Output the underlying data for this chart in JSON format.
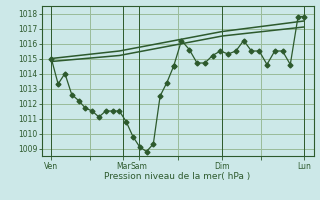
{
  "bg_color": "#cce8e8",
  "grid_color": "#99bb99",
  "line_color": "#2d5a2d",
  "text_color": "#2d5a2d",
  "xlabel": "Pression niveau de la mer( hPa )",
  "ylim": [
    1008.5,
    1018.5
  ],
  "yticks": [
    1009,
    1010,
    1011,
    1012,
    1013,
    1014,
    1015,
    1016,
    1017,
    1018
  ],
  "xlim": [
    0,
    14.0
  ],
  "xtick_labels": [
    "Ven",
    "",
    "Mar",
    "Sam",
    "",
    "Dim",
    "",
    "Lun"
  ],
  "xtick_positions": [
    0.5,
    2.5,
    4.2,
    5.0,
    7.0,
    9.3,
    11.3,
    13.5
  ],
  "series_main_x": [
    0.5,
    0.85,
    1.2,
    1.55,
    1.9,
    2.25,
    2.6,
    2.95,
    3.3,
    3.65,
    4.0,
    4.35,
    4.7,
    5.05,
    5.4,
    5.75,
    6.1,
    6.45,
    6.8
  ],
  "series_main_y": [
    1015.0,
    1013.3,
    1014.0,
    1012.6,
    1012.2,
    1011.7,
    1011.5,
    1011.1,
    1011.5,
    1011.5,
    1011.5,
    1010.8,
    1009.8,
    1009.1,
    1008.8,
    1009.3,
    1012.5,
    1013.4,
    1014.5
  ],
  "series_right_x": [
    6.8,
    7.2,
    7.6,
    8.0,
    8.4,
    8.8,
    9.2,
    9.6,
    10.0,
    10.4,
    10.8,
    11.2,
    11.6,
    12.0,
    12.4,
    12.8,
    13.2,
    13.5
  ],
  "series_right_y": [
    1014.5,
    1016.2,
    1015.6,
    1014.7,
    1014.7,
    1015.2,
    1015.5,
    1015.3,
    1015.5,
    1016.2,
    1015.5,
    1015.5,
    1014.6,
    1015.5,
    1015.5,
    1014.6,
    1017.8,
    1017.8
  ],
  "trend1_x": [
    0.5,
    4.0,
    9.3,
    13.5
  ],
  "trend1_y": [
    1014.8,
    1015.2,
    1016.5,
    1017.1
  ],
  "trend2_x": [
    0.5,
    4.0,
    9.3,
    13.5
  ],
  "trend2_y": [
    1015.0,
    1015.5,
    1016.8,
    1017.5
  ],
  "vlines_x": [
    0.5,
    4.2,
    5.0,
    9.3,
    13.5
  ],
  "marker_size": 2.5
}
